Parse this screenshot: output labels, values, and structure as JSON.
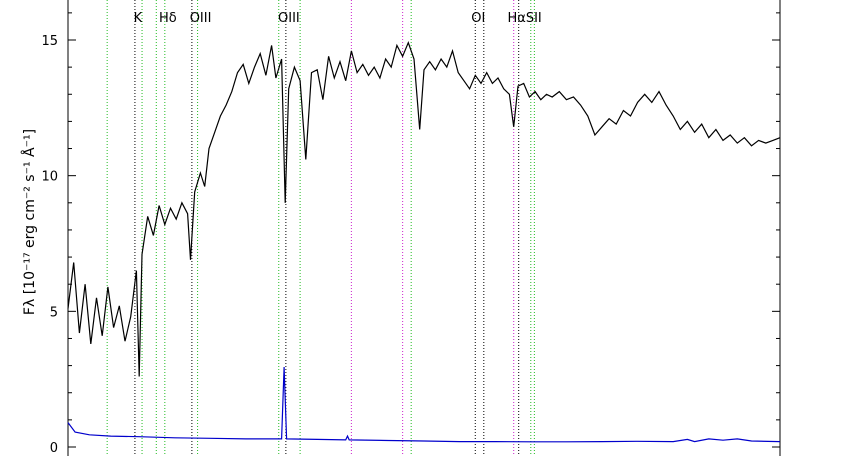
{
  "chart_data": {
    "type": "line",
    "title": "",
    "xlabel": "",
    "ylabel": "Fλ [10⁻¹⁷ erg cm⁻² s⁻¹ Å⁻¹]",
    "ylim": [
      0,
      17
    ],
    "x_range": [
      0,
      1
    ],
    "yticks": [
      "0",
      "5",
      "10",
      "15"
    ],
    "grid": false,
    "series": [
      {
        "color": "#000000",
        "values": [
          [
            0.0,
            5.1
          ],
          [
            0.008,
            6.8
          ],
          [
            0.016,
            4.2
          ],
          [
            0.024,
            6.0
          ],
          [
            0.032,
            3.8
          ],
          [
            0.04,
            5.5
          ],
          [
            0.048,
            4.1
          ],
          [
            0.056,
            5.9
          ],
          [
            0.064,
            4.4
          ],
          [
            0.072,
            5.2
          ],
          [
            0.08,
            3.9
          ],
          [
            0.088,
            4.8
          ],
          [
            0.096,
            6.5
          ],
          [
            0.1,
            2.6
          ],
          [
            0.104,
            7.1
          ],
          [
            0.112,
            8.5
          ],
          [
            0.12,
            7.8
          ],
          [
            0.128,
            8.9
          ],
          [
            0.136,
            8.2
          ],
          [
            0.144,
            8.8
          ],
          [
            0.152,
            8.4
          ],
          [
            0.16,
            9.0
          ],
          [
            0.168,
            8.6
          ],
          [
            0.172,
            6.9
          ],
          [
            0.178,
            9.4
          ],
          [
            0.186,
            10.1
          ],
          [
            0.192,
            9.6
          ],
          [
            0.198,
            11.0
          ],
          [
            0.206,
            11.6
          ],
          [
            0.214,
            12.2
          ],
          [
            0.222,
            12.6
          ],
          [
            0.23,
            13.1
          ],
          [
            0.238,
            13.8
          ],
          [
            0.246,
            14.1
          ],
          [
            0.254,
            13.4
          ],
          [
            0.262,
            14.0
          ],
          [
            0.27,
            14.5
          ],
          [
            0.278,
            13.7
          ],
          [
            0.286,
            14.8
          ],
          [
            0.292,
            13.6
          ],
          [
            0.3,
            14.3
          ],
          [
            0.305,
            9.0
          ],
          [
            0.31,
            13.2
          ],
          [
            0.318,
            14.0
          ],
          [
            0.326,
            13.5
          ],
          [
            0.334,
            10.6
          ],
          [
            0.342,
            13.8
          ],
          [
            0.35,
            13.9
          ],
          [
            0.358,
            12.8
          ],
          [
            0.366,
            14.4
          ],
          [
            0.374,
            13.6
          ],
          [
            0.382,
            14.2
          ],
          [
            0.39,
            13.5
          ],
          [
            0.398,
            14.6
          ],
          [
            0.406,
            13.8
          ],
          [
            0.414,
            14.1
          ],
          [
            0.422,
            13.7
          ],
          [
            0.43,
            14.0
          ],
          [
            0.438,
            13.6
          ],
          [
            0.446,
            14.3
          ],
          [
            0.454,
            14.0
          ],
          [
            0.462,
            14.8
          ],
          [
            0.47,
            14.4
          ],
          [
            0.478,
            14.9
          ],
          [
            0.486,
            14.3
          ],
          [
            0.494,
            11.7
          ],
          [
            0.5,
            13.9
          ],
          [
            0.508,
            14.2
          ],
          [
            0.516,
            13.9
          ],
          [
            0.524,
            14.3
          ],
          [
            0.532,
            14.0
          ],
          [
            0.54,
            14.6
          ],
          [
            0.548,
            13.8
          ],
          [
            0.556,
            13.5
          ],
          [
            0.564,
            13.2
          ],
          [
            0.572,
            13.7
          ],
          [
            0.58,
            13.4
          ],
          [
            0.588,
            13.8
          ],
          [
            0.596,
            13.4
          ],
          [
            0.604,
            13.6
          ],
          [
            0.612,
            13.2
          ],
          [
            0.62,
            13.0
          ],
          [
            0.626,
            11.8
          ],
          [
            0.632,
            13.3
          ],
          [
            0.64,
            13.4
          ],
          [
            0.648,
            12.9
          ],
          [
            0.656,
            13.1
          ],
          [
            0.664,
            12.8
          ],
          [
            0.672,
            13.0
          ],
          [
            0.68,
            12.9
          ],
          [
            0.69,
            13.1
          ],
          [
            0.7,
            12.8
          ],
          [
            0.71,
            12.9
          ],
          [
            0.72,
            12.6
          ],
          [
            0.73,
            12.2
          ],
          [
            0.74,
            11.5
          ],
          [
            0.75,
            11.8
          ],
          [
            0.76,
            12.1
          ],
          [
            0.77,
            11.9
          ],
          [
            0.78,
            12.4
          ],
          [
            0.79,
            12.2
          ],
          [
            0.8,
            12.7
          ],
          [
            0.81,
            13.0
          ],
          [
            0.82,
            12.7
          ],
          [
            0.83,
            13.1
          ],
          [
            0.84,
            12.6
          ],
          [
            0.85,
            12.2
          ],
          [
            0.86,
            11.7
          ],
          [
            0.87,
            12.0
          ],
          [
            0.88,
            11.6
          ],
          [
            0.89,
            11.9
          ],
          [
            0.9,
            11.4
          ],
          [
            0.91,
            11.7
          ],
          [
            0.92,
            11.3
          ],
          [
            0.93,
            11.5
          ],
          [
            0.94,
            11.2
          ],
          [
            0.95,
            11.4
          ],
          [
            0.96,
            11.1
          ],
          [
            0.97,
            11.3
          ],
          [
            0.98,
            11.2
          ],
          [
            0.99,
            11.3
          ],
          [
            1.0,
            11.4
          ]
        ]
      },
      {
        "color": "#0000cc",
        "values": [
          [
            0.0,
            0.9
          ],
          [
            0.01,
            0.55
          ],
          [
            0.03,
            0.45
          ],
          [
            0.06,
            0.4
          ],
          [
            0.1,
            0.38
          ],
          [
            0.15,
            0.34
          ],
          [
            0.2,
            0.32
          ],
          [
            0.25,
            0.3
          ],
          [
            0.3,
            0.3
          ],
          [
            0.3035,
            2.95
          ],
          [
            0.307,
            0.3
          ],
          [
            0.35,
            0.28
          ],
          [
            0.39,
            0.26
          ],
          [
            0.3925,
            0.4
          ],
          [
            0.395,
            0.26
          ],
          [
            0.45,
            0.24
          ],
          [
            0.5,
            0.22
          ],
          [
            0.55,
            0.2
          ],
          [
            0.6,
            0.2
          ],
          [
            0.65,
            0.19
          ],
          [
            0.7,
            0.19
          ],
          [
            0.75,
            0.2
          ],
          [
            0.8,
            0.21
          ],
          [
            0.85,
            0.2
          ],
          [
            0.87,
            0.28
          ],
          [
            0.88,
            0.2
          ],
          [
            0.9,
            0.3
          ],
          [
            0.92,
            0.25
          ],
          [
            0.94,
            0.3
          ],
          [
            0.96,
            0.22
          ],
          [
            1.0,
            0.2
          ]
        ]
      }
    ],
    "reference_lines": [
      {
        "x": 0.055,
        "color": "#22bb22",
        "label": ""
      },
      {
        "x": 0.094,
        "color": "#000000",
        "label": "K"
      },
      {
        "x": 0.104,
        "color": "#22bb22",
        "label": ""
      },
      {
        "x": 0.124,
        "color": "#22bb22",
        "label": ""
      },
      {
        "x": 0.136,
        "color": "#22bb22",
        "label": "Hδ"
      },
      {
        "x": 0.174,
        "color": "#000000",
        "label": ""
      },
      {
        "x": 0.182,
        "color": "#22bb22",
        "label": "OIII"
      },
      {
        "x": 0.296,
        "color": "#22bb22",
        "label": ""
      },
      {
        "x": 0.306,
        "color": "#000000",
        "label": "OIII"
      },
      {
        "x": 0.326,
        "color": "#22bb22",
        "label": ""
      },
      {
        "x": 0.398,
        "color": "#cc22cc",
        "label": ""
      },
      {
        "x": 0.47,
        "color": "#cc22cc",
        "label": ""
      },
      {
        "x": 0.482,
        "color": "#22bb22",
        "label": ""
      },
      {
        "x": 0.572,
        "color": "#000000",
        "label": "OI"
      },
      {
        "x": 0.584,
        "color": "#000000",
        "label": ""
      },
      {
        "x": 0.626,
        "color": "#cc22cc",
        "label": "Hα"
      },
      {
        "x": 0.633,
        "color": "#000000",
        "label": ""
      },
      {
        "x": 0.65,
        "color": "#22bb22",
        "label": "SII"
      },
      {
        "x": 0.655,
        "color": "#22bb22",
        "label": ""
      }
    ]
  }
}
